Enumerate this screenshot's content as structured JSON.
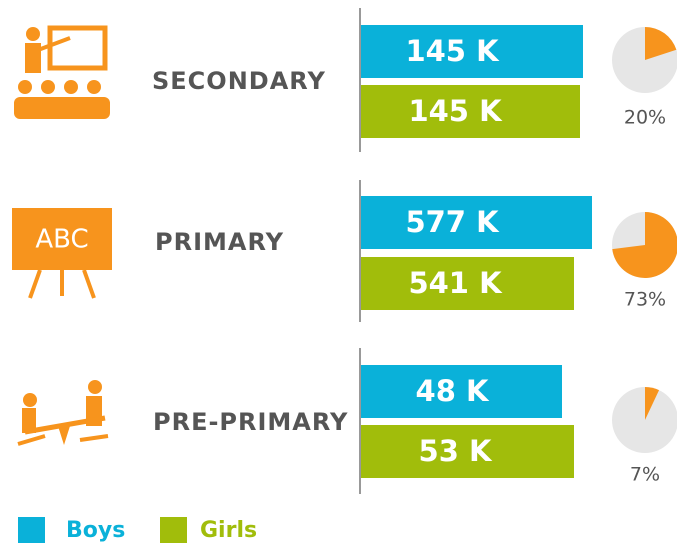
{
  "rows": [
    {
      "label": "SECONDARY",
      "boys": "145 K",
      "girls": "145 K",
      "share": 20,
      "share_label": "20%"
    },
    {
      "label": "PRIMARY",
      "boys": "577 K",
      "girls": "541 K",
      "share": 73,
      "share_label": "73%"
    },
    {
      "label": "PRE-PRIMARY",
      "boys": "48 K",
      "girls": "53 K",
      "share": 7,
      "share_label": "7%"
    }
  ],
  "legend": {
    "boys": "Boys",
    "girls": "Girls"
  },
  "colors": {
    "boys": "#0ab1d9",
    "girls": "#a1bd0b",
    "share": "#f7941d",
    "rest": "#e6e6e6"
  }
}
